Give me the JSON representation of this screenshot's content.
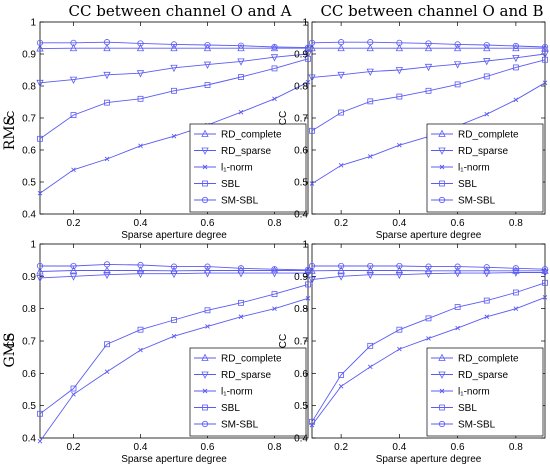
{
  "figure": {
    "column_titles": [
      "CC between channel O and A",
      "CC between channel O and B"
    ],
    "row_labels": [
      "RMS",
      "GMS"
    ]
  },
  "colors": {
    "series": "#5b5bf5",
    "axes": "#000000"
  },
  "legend_entries": [
    {
      "label": "RD_complete",
      "marker": "triangle-up"
    },
    {
      "label": "RD_sparse",
      "marker": "triangle-down"
    },
    {
      "label": "l₁-norm",
      "marker": "x"
    },
    {
      "label": "SBL",
      "marker": "square"
    },
    {
      "label": "SM-SBL",
      "marker": "circle"
    }
  ],
  "chart_data": [
    {
      "type": "line",
      "row": "RMS",
      "column": "CC between channel O and A",
      "xlabel": "Sparse aperture degree",
      "ylabel": "CC",
      "xlim": [
        0.1,
        0.9
      ],
      "ylim": [
        0.4,
        1.0
      ],
      "xticks": [
        "0.2",
        "0.4",
        "0.6",
        "0.8"
      ],
      "yticks": [
        "0.4",
        "0.5",
        "0.6",
        "0.7",
        "0.8",
        "0.9",
        "1"
      ],
      "legend_position": "bottom-right",
      "x": [
        0.1,
        0.2,
        0.3,
        0.4,
        0.5,
        0.6,
        0.7,
        0.8,
        0.9
      ],
      "series": [
        {
          "name": "RD_complete",
          "values": [
            0.917,
            0.918,
            0.918,
            0.918,
            0.918,
            0.918,
            0.918,
            0.918,
            0.918
          ]
        },
        {
          "name": "RD_sparse",
          "values": [
            0.81,
            0.82,
            0.835,
            0.84,
            0.857,
            0.867,
            0.877,
            0.89,
            0.9
          ]
        },
        {
          "name": "l₁-norm",
          "values": [
            0.465,
            0.538,
            0.572,
            0.613,
            0.643,
            0.678,
            0.718,
            0.76,
            0.812
          ]
        },
        {
          "name": "SBL",
          "values": [
            0.635,
            0.709,
            0.748,
            0.76,
            0.785,
            0.803,
            0.828,
            0.855,
            0.885
          ]
        },
        {
          "name": "SM-SBL",
          "values": [
            0.935,
            0.935,
            0.937,
            0.933,
            0.93,
            0.928,
            0.926,
            0.922,
            0.92
          ]
        }
      ]
    },
    {
      "type": "line",
      "row": "RMS",
      "column": "CC between channel O and B",
      "xlabel": "Sparse aperture degree",
      "ylabel": "CC",
      "xlim": [
        0.1,
        0.9
      ],
      "ylim": [
        0.4,
        1.0
      ],
      "xticks": [
        "0.2",
        "0.4",
        "0.6",
        "0.8"
      ],
      "yticks": [
        "0.4",
        "0.5",
        "0.6",
        "0.7",
        "0.8",
        "0.9",
        "1"
      ],
      "legend_position": "bottom-right",
      "x": [
        0.1,
        0.2,
        0.3,
        0.4,
        0.5,
        0.6,
        0.7,
        0.8,
        0.9
      ],
      "series": [
        {
          "name": "RD_complete",
          "values": [
            0.918,
            0.918,
            0.918,
            0.918,
            0.918,
            0.918,
            0.918,
            0.918,
            0.918
          ]
        },
        {
          "name": "RD_sparse",
          "values": [
            0.827,
            0.835,
            0.845,
            0.85,
            0.86,
            0.868,
            0.878,
            0.888,
            0.9
          ]
        },
        {
          "name": "l₁-norm",
          "values": [
            0.495,
            0.552,
            0.58,
            0.615,
            0.642,
            0.675,
            0.712,
            0.757,
            0.81
          ]
        },
        {
          "name": "SBL",
          "values": [
            0.66,
            0.717,
            0.752,
            0.767,
            0.785,
            0.805,
            0.83,
            0.858,
            0.882
          ]
        },
        {
          "name": "SM-SBL",
          "values": [
            0.935,
            0.937,
            0.937,
            0.935,
            0.933,
            0.93,
            0.928,
            0.925,
            0.922
          ]
        }
      ]
    },
    {
      "type": "line",
      "row": "GMS",
      "column": "CC between channel O and A",
      "xlabel": "Sparse aperture degree",
      "ylabel": "CC",
      "xlim": [
        0.1,
        0.9
      ],
      "ylim": [
        0.4,
        1.0
      ],
      "xticks": [
        "0.2",
        "0.4",
        "0.6",
        "0.8"
      ],
      "yticks": [
        "0.4",
        "0.5",
        "0.6",
        "0.7",
        "0.8",
        "0.9",
        "1"
      ],
      "legend_position": "bottom-right",
      "x": [
        0.1,
        0.2,
        0.3,
        0.4,
        0.5,
        0.6,
        0.7,
        0.8,
        0.9
      ],
      "series": [
        {
          "name": "RD_complete",
          "values": [
            0.915,
            0.918,
            0.918,
            0.918,
            0.917,
            0.918,
            0.918,
            0.918,
            0.918
          ]
        },
        {
          "name": "RD_sparse",
          "values": [
            0.895,
            0.9,
            0.905,
            0.908,
            0.908,
            0.91,
            0.91,
            0.91,
            0.91
          ]
        },
        {
          "name": "l₁-norm",
          "values": [
            0.39,
            0.535,
            0.605,
            0.672,
            0.715,
            0.745,
            0.775,
            0.8,
            0.832
          ]
        },
        {
          "name": "SBL",
          "values": [
            0.475,
            0.553,
            0.69,
            0.735,
            0.765,
            0.795,
            0.818,
            0.845,
            0.875
          ]
        },
        {
          "name": "SM-SBL",
          "values": [
            0.932,
            0.932,
            0.937,
            0.935,
            0.93,
            0.93,
            0.925,
            0.922,
            0.92
          ]
        }
      ]
    },
    {
      "type": "line",
      "row": "GMS",
      "column": "CC between channel O and B",
      "xlabel": "Sparse aperture degree",
      "ylabel": "CC",
      "xlim": [
        0.1,
        0.9
      ],
      "ylim": [
        0.4,
        1.0
      ],
      "xticks": [
        "0.2",
        "0.4",
        "0.6",
        "0.8"
      ],
      "yticks": [
        "0.4",
        "0.5",
        "0.6",
        "0.7",
        "0.8",
        "0.9",
        "1"
      ],
      "legend_position": "bottom-right",
      "x": [
        0.1,
        0.2,
        0.3,
        0.4,
        0.5,
        0.6,
        0.7,
        0.8,
        0.9
      ],
      "series": [
        {
          "name": "RD_complete",
          "values": [
            0.917,
            0.918,
            0.918,
            0.918,
            0.917,
            0.917,
            0.917,
            0.917,
            0.917
          ]
        },
        {
          "name": "RD_sparse",
          "values": [
            0.89,
            0.9,
            0.905,
            0.905,
            0.908,
            0.91,
            0.91,
            0.912,
            0.912
          ]
        },
        {
          "name": "l₁-norm",
          "values": [
            0.44,
            0.56,
            0.62,
            0.675,
            0.708,
            0.74,
            0.775,
            0.8,
            0.835
          ]
        },
        {
          "name": "SBL",
          "values": [
            0.45,
            0.595,
            0.685,
            0.735,
            0.77,
            0.805,
            0.825,
            0.85,
            0.88
          ]
        },
        {
          "name": "SM-SBL",
          "values": [
            0.932,
            0.932,
            0.932,
            0.932,
            0.93,
            0.93,
            0.928,
            0.925,
            0.922
          ]
        }
      ]
    }
  ]
}
